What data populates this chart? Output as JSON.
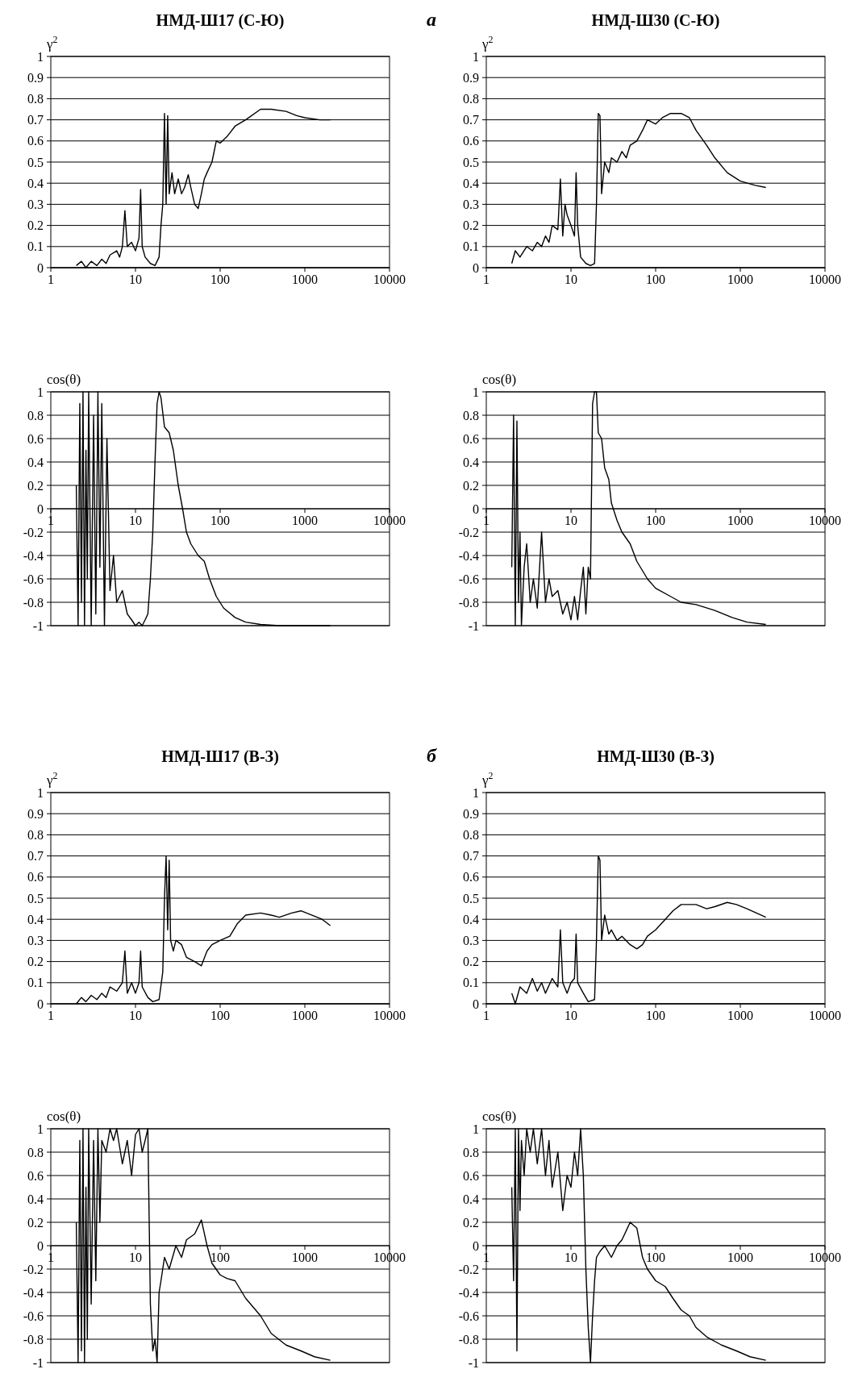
{
  "chart_data": [
    {
      "type": "line",
      "title": "НМД-Ш17 (С-Ю)",
      "ylabel": "γ$^{2}$",
      "annotations": [
        "а"
      ],
      "log": "x",
      "grid": "y",
      "xlim": [
        1,
        10000
      ],
      "xticks": [
        1,
        10,
        100,
        1000,
        10000
      ],
      "ylim": [
        0,
        1
      ],
      "yticks": [
        0,
        0.1,
        0.2,
        0.3,
        0.4,
        0.5,
        0.6,
        0.7,
        0.8,
        0.9,
        1
      ],
      "series": [
        {
          "color": "#000000",
          "x": [
            2,
            2.3,
            2.6,
            3,
            3.5,
            4,
            4.5,
            5,
            6,
            6.5,
            7,
            7.5,
            8,
            9,
            10,
            11,
            11.5,
            12,
            13,
            15,
            17,
            19,
            20,
            21,
            22,
            23,
            24,
            25,
            27,
            29,
            32,
            35,
            38,
            42,
            45,
            50,
            55,
            60,
            65,
            70,
            80,
            90,
            100,
            120,
            150,
            200,
            300,
            400,
            600,
            800,
            1000,
            1500,
            2000
          ],
          "values": [
            0.01,
            0.03,
            0,
            0.03,
            0.01,
            0.04,
            0.02,
            0.06,
            0.08,
            0.05,
            0.1,
            0.27,
            0.1,
            0.12,
            0.08,
            0.14,
            0.37,
            0.1,
            0.05,
            0.02,
            0.01,
            0.05,
            0.2,
            0.3,
            0.73,
            0.3,
            0.72,
            0.35,
            0.45,
            0.35,
            0.42,
            0.35,
            0.38,
            0.44,
            0.38,
            0.3,
            0.28,
            0.35,
            0.42,
            0.45,
            0.5,
            0.6,
            0.59,
            0.62,
            0.67,
            0.7,
            0.75,
            0.75,
            0.74,
            0.72,
            0.71,
            0.7,
            0.7
          ]
        }
      ]
    },
    {
      "type": "line",
      "title": "НМД-Ш30 (С-Ю)",
      "ylabel": "γ$^{2}$",
      "log": "x",
      "grid": "y",
      "xlim": [
        1,
        10000
      ],
      "xticks": [
        1,
        10,
        100,
        1000,
        10000
      ],
      "ylim": [
        0,
        1
      ],
      "yticks": [
        0,
        0.1,
        0.2,
        0.3,
        0.4,
        0.5,
        0.6,
        0.7,
        0.8,
        0.9,
        1
      ],
      "series": [
        {
          "color": "#000000",
          "x": [
            2,
            2.2,
            2.5,
            3,
            3.5,
            4,
            4.5,
            5,
            5.5,
            6,
            7,
            7.5,
            8,
            8.5,
            9,
            10,
            11,
            11.5,
            12,
            13,
            15,
            17,
            19,
            20,
            21,
            22,
            23,
            25,
            28,
            30,
            35,
            40,
            45,
            50,
            60,
            70,
            80,
            100,
            120,
            150,
            200,
            250,
            300,
            400,
            500,
            700,
            1000,
            1500,
            2000
          ],
          "values": [
            0.02,
            0.08,
            0.05,
            0.1,
            0.08,
            0.12,
            0.1,
            0.15,
            0.12,
            0.2,
            0.18,
            0.42,
            0.15,
            0.3,
            0.25,
            0.2,
            0.15,
            0.45,
            0.2,
            0.05,
            0.02,
            0.01,
            0.02,
            0.3,
            0.73,
            0.72,
            0.35,
            0.5,
            0.45,
            0.52,
            0.5,
            0.55,
            0.52,
            0.58,
            0.6,
            0.65,
            0.7,
            0.68,
            0.71,
            0.73,
            0.73,
            0.71,
            0.65,
            0.58,
            0.52,
            0.45,
            0.41,
            0.39,
            0.38
          ]
        }
      ]
    },
    {
      "type": "line",
      "ylabel": "cos(θ)",
      "log": "x",
      "grid": "y",
      "xlim": [
        1,
        10000
      ],
      "xticks": [
        1,
        10,
        100,
        1000,
        10000
      ],
      "ylim": [
        -1,
        1
      ],
      "yticks": [
        -1,
        -0.8,
        -0.6,
        -0.4,
        -0.2,
        0,
        0.2,
        0.4,
        0.6,
        0.8,
        1
      ],
      "series": [
        {
          "color": "#000000",
          "x": [
            2,
            2.1,
            2.2,
            2.3,
            2.4,
            2.5,
            2.6,
            2.7,
            2.8,
            3,
            3.2,
            3.4,
            3.6,
            3.8,
            4,
            4.3,
            4.6,
            5,
            5.5,
            6,
            7,
            8,
            9,
            10,
            11,
            12,
            13,
            14,
            15,
            16,
            17,
            18,
            19,
            20,
            22,
            25,
            28,
            32,
            36,
            40,
            45,
            55,
            65,
            75,
            90,
            110,
            150,
            200,
            300,
            500,
            1000,
            2000
          ],
          "values": [
            0.2,
            -1,
            0.9,
            -0.8,
            1,
            -1,
            0.5,
            -0.6,
            1,
            -1,
            0.8,
            -0.9,
            1,
            -0.5,
            0.9,
            -1,
            0.6,
            -0.7,
            -0.4,
            -0.8,
            -0.7,
            -0.9,
            -0.95,
            -1,
            -0.97,
            -1,
            -0.95,
            -0.9,
            -0.6,
            -0.2,
            0.4,
            0.9,
            1,
            0.95,
            0.7,
            0.65,
            0.5,
            0.2,
            0,
            -0.2,
            -0.3,
            -0.4,
            -0.45,
            -0.6,
            -0.75,
            -0.85,
            -0.93,
            -0.97,
            -0.99,
            -1,
            -1,
            -1
          ]
        }
      ]
    },
    {
      "type": "line",
      "ylabel": "cos(θ)",
      "log": "x",
      "grid": "y",
      "xlim": [
        1,
        10000
      ],
      "xticks": [
        1,
        10,
        100,
        1000,
        10000
      ],
      "ylim": [
        -1,
        1
      ],
      "yticks": [
        -1,
        -0.8,
        -0.6,
        -0.4,
        -0.2,
        0,
        0.2,
        0.4,
        0.6,
        0.8,
        1
      ],
      "series": [
        {
          "color": "#000000",
          "x": [
            2,
            2.1,
            2.2,
            2.3,
            2.4,
            2.5,
            2.6,
            2.8,
            3,
            3.3,
            3.6,
            4,
            4.5,
            5,
            5.5,
            6,
            7,
            8,
            9,
            10,
            11,
            12,
            13,
            14,
            15,
            16,
            17,
            18,
            19,
            20,
            21,
            23,
            25,
            28,
            30,
            35,
            40,
            50,
            60,
            80,
            100,
            150,
            200,
            300,
            500,
            800,
            1200,
            2000
          ],
          "values": [
            -0.5,
            0.8,
            -1,
            0.75,
            -0.8,
            -0.2,
            -1,
            -0.5,
            -0.3,
            -0.8,
            -0.6,
            -0.85,
            -0.2,
            -0.8,
            -0.6,
            -0.75,
            -0.7,
            -0.9,
            -0.8,
            -0.95,
            -0.75,
            -0.95,
            -0.7,
            -0.5,
            -0.9,
            -0.5,
            -0.6,
            0.9,
            1,
            1,
            0.65,
            0.6,
            0.35,
            0.25,
            0.05,
            -0.1,
            -0.2,
            -0.3,
            -0.45,
            -0.6,
            -0.68,
            -0.75,
            -0.8,
            -0.82,
            -0.87,
            -0.93,
            -0.97,
            -0.99
          ]
        }
      ]
    },
    {
      "type": "line",
      "title": "НМД-Ш17 (В-З)",
      "ylabel": "γ$^{2}$",
      "annotations": [
        "б"
      ],
      "log": "x",
      "grid": "y",
      "xlim": [
        1,
        10000
      ],
      "xticks": [
        1,
        10,
        100,
        1000,
        10000
      ],
      "ylim": [
        0,
        1
      ],
      "yticks": [
        0,
        0.1,
        0.2,
        0.3,
        0.4,
        0.5,
        0.6,
        0.7,
        0.8,
        0.9,
        1
      ],
      "series": [
        {
          "color": "#000000",
          "x": [
            2,
            2.3,
            2.6,
            3,
            3.5,
            4,
            4.5,
            5,
            6,
            7,
            7.5,
            8,
            9,
            10,
            11,
            11.5,
            12,
            14,
            16,
            19,
            21,
            22,
            23,
            24,
            25,
            26,
            28,
            30,
            35,
            40,
            50,
            60,
            70,
            80,
            100,
            130,
            160,
            200,
            300,
            400,
            500,
            700,
            900,
            1200,
            1600,
            2000
          ],
          "values": [
            0,
            0.03,
            0.01,
            0.04,
            0.02,
            0.05,
            0.03,
            0.08,
            0.06,
            0.1,
            0.25,
            0.05,
            0.1,
            0.05,
            0.1,
            0.25,
            0.08,
            0.03,
            0.01,
            0.02,
            0.15,
            0.5,
            0.7,
            0.35,
            0.68,
            0.3,
            0.25,
            0.3,
            0.28,
            0.22,
            0.2,
            0.18,
            0.25,
            0.28,
            0.3,
            0.32,
            0.38,
            0.42,
            0.43,
            0.42,
            0.41,
            0.43,
            0.44,
            0.42,
            0.4,
            0.37
          ]
        }
      ]
    },
    {
      "type": "line",
      "title": "НМД-Ш30 (В-З)",
      "ylabel": "γ$^{2}$",
      "log": "x",
      "grid": "y",
      "xlim": [
        1,
        10000
      ],
      "xticks": [
        1,
        10,
        100,
        1000,
        10000
      ],
      "ylim": [
        0,
        1
      ],
      "yticks": [
        0,
        0.1,
        0.2,
        0.3,
        0.4,
        0.5,
        0.6,
        0.7,
        0.8,
        0.9,
        1
      ],
      "series": [
        {
          "color": "#000000",
          "x": [
            2,
            2.2,
            2.5,
            3,
            3.5,
            4,
            4.5,
            5,
            6,
            7,
            7.5,
            8,
            9,
            10,
            11,
            11.5,
            12,
            14,
            16,
            19,
            20,
            21,
            22,
            23,
            25,
            28,
            30,
            35,
            40,
            50,
            60,
            70,
            80,
            100,
            130,
            160,
            200,
            300,
            400,
            500,
            700,
            900,
            1200,
            2000
          ],
          "values": [
            0.05,
            0,
            0.08,
            0.05,
            0.12,
            0.06,
            0.1,
            0.05,
            0.12,
            0.08,
            0.35,
            0.1,
            0.05,
            0.1,
            0.12,
            0.33,
            0.1,
            0.05,
            0.01,
            0.02,
            0.3,
            0.7,
            0.68,
            0.3,
            0.42,
            0.33,
            0.35,
            0.3,
            0.32,
            0.28,
            0.26,
            0.28,
            0.32,
            0.35,
            0.4,
            0.44,
            0.47,
            0.47,
            0.45,
            0.46,
            0.48,
            0.47,
            0.45,
            0.41
          ]
        }
      ]
    },
    {
      "type": "line",
      "ylabel": "cos(θ)",
      "log": "x",
      "grid": "y",
      "xlim": [
        1,
        10000
      ],
      "xticks": [
        1,
        10,
        100,
        1000,
        10000
      ],
      "ylim": [
        -1,
        1
      ],
      "yticks": [
        -1,
        -0.8,
        -0.6,
        -0.4,
        -0.2,
        0,
        0.2,
        0.4,
        0.6,
        0.8,
        1
      ],
      "series": [
        {
          "color": "#000000",
          "x": [
            2,
            2.1,
            2.2,
            2.3,
            2.4,
            2.5,
            2.6,
            2.7,
            2.8,
            3,
            3.2,
            3.4,
            3.6,
            3.8,
            4,
            4.5,
            5,
            5.5,
            6,
            7,
            8,
            9,
            10,
            11,
            12,
            13,
            14,
            15,
            16,
            17,
            18,
            19,
            20,
            22,
            25,
            30,
            35,
            40,
            50,
            60,
            70,
            80,
            100,
            120,
            150,
            200,
            300,
            400,
            600,
            900,
            1300,
            2000
          ],
          "values": [
            0.2,
            -1,
            0.9,
            -0.9,
            1,
            -1,
            0.5,
            -0.8,
            1,
            -0.5,
            0.9,
            -0.3,
            1,
            0.2,
            0.9,
            0.8,
            1,
            0.9,
            1,
            0.7,
            0.9,
            0.6,
            0.95,
            1,
            0.8,
            0.9,
            1,
            -0.5,
            -0.9,
            -0.8,
            -1,
            -0.4,
            -0.3,
            -0.1,
            -0.2,
            0,
            -0.1,
            0.05,
            0.1,
            0.22,
            0,
            -0.15,
            -0.25,
            -0.28,
            -0.3,
            -0.45,
            -0.6,
            -0.75,
            -0.85,
            -0.9,
            -0.95,
            -0.98
          ]
        }
      ]
    },
    {
      "type": "line",
      "ylabel": "cos(θ)",
      "log": "x",
      "grid": "y",
      "xlim": [
        1,
        10000
      ],
      "xticks": [
        1,
        10,
        100,
        1000,
        10000
      ],
      "ylim": [
        -1,
        1
      ],
      "yticks": [
        -1,
        -0.8,
        -0.6,
        -0.4,
        -0.2,
        0,
        0.2,
        0.4,
        0.6,
        0.8,
        1
      ],
      "series": [
        {
          "color": "#000000",
          "x": [
            2,
            2.1,
            2.2,
            2.3,
            2.4,
            2.5,
            2.6,
            2.8,
            3,
            3.3,
            3.6,
            4,
            4.5,
            5,
            5.5,
            6,
            7,
            8,
            9,
            10,
            11,
            12,
            13,
            14,
            15,
            16,
            17,
            18,
            19,
            20,
            22,
            25,
            30,
            35,
            40,
            50,
            60,
            70,
            80,
            100,
            130,
            160,
            200,
            250,
            300,
            400,
            600,
            900,
            1300,
            2000
          ],
          "values": [
            0.5,
            -0.3,
            1,
            -0.9,
            1,
            0.3,
            0.9,
            0.6,
            1,
            0.8,
            1,
            0.7,
            1,
            0.6,
            0.9,
            0.5,
            0.8,
            0.3,
            0.6,
            0.5,
            0.8,
            0.6,
            1,
            0.6,
            -0.2,
            -0.7,
            -1,
            -0.6,
            -0.3,
            -0.1,
            -0.05,
            0,
            -0.1,
            0,
            0.05,
            0.2,
            0.15,
            -0.1,
            -0.2,
            -0.3,
            -0.35,
            -0.45,
            -0.55,
            -0.6,
            -0.7,
            -0.78,
            -0.85,
            -0.9,
            -0.95,
            -0.98
          ]
        }
      ]
    }
  ]
}
